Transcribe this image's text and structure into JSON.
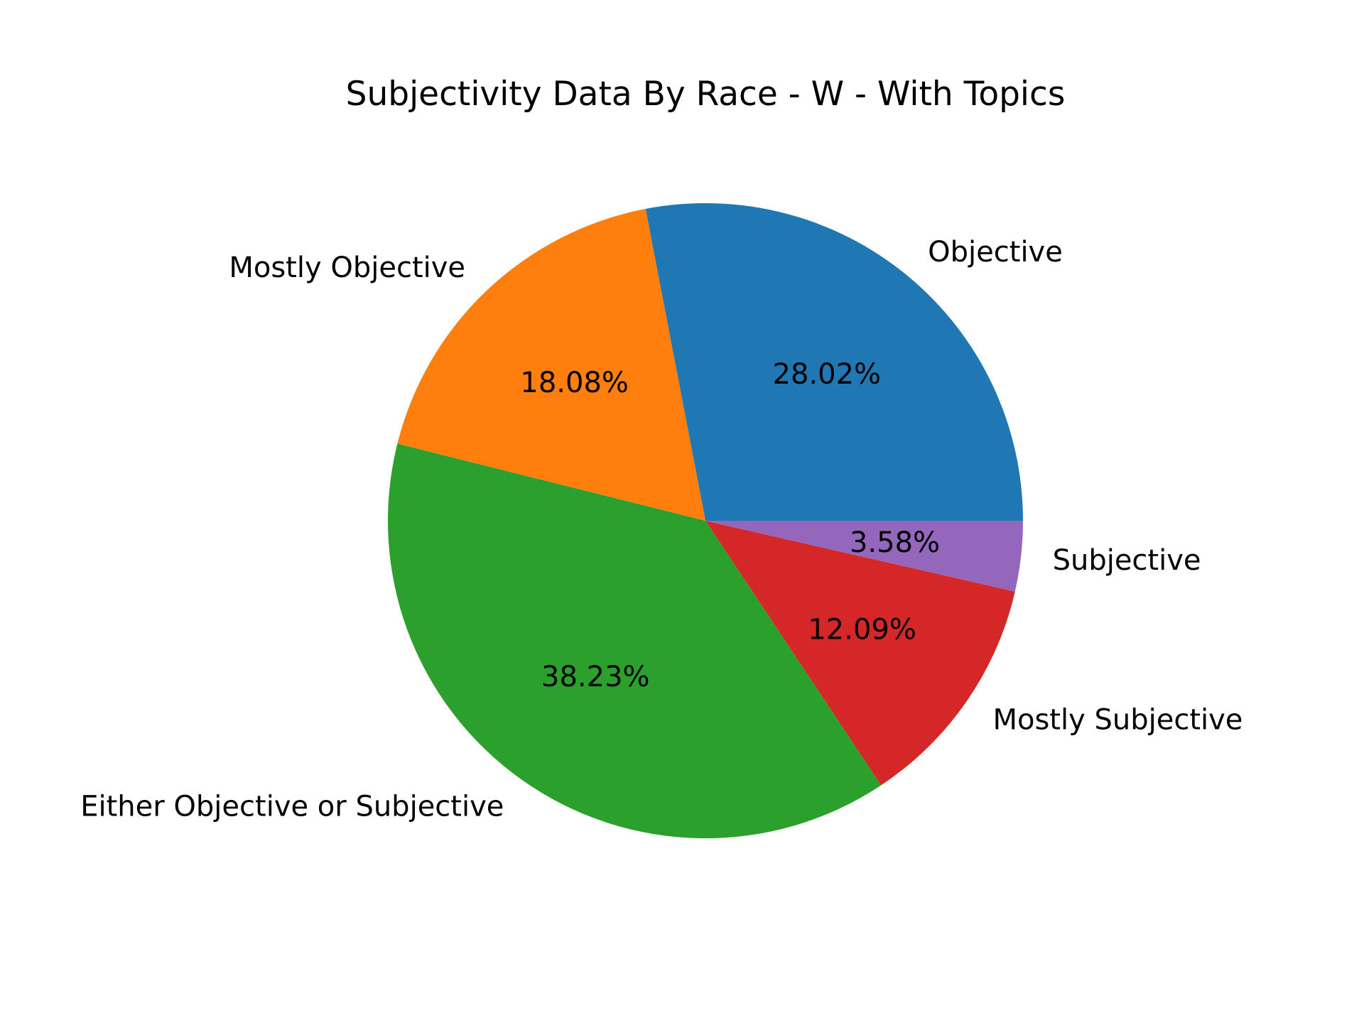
{
  "chart_data": {
    "type": "pie",
    "title": "Subjectivity Data By Race - W - With Topics",
    "slices": [
      {
        "label": "Objective",
        "value": 28.02,
        "pct_text": "28.02%",
        "color": "#1f77b4"
      },
      {
        "label": "Mostly Objective",
        "value": 18.08,
        "pct_text": "18.08%",
        "color": "#ff7f0e"
      },
      {
        "label": "Either Objective or Subjective",
        "value": 38.23,
        "pct_text": "38.23%",
        "color": "#2ca02c"
      },
      {
        "label": "Mostly Subjective",
        "value": 12.09,
        "pct_text": "12.09%",
        "color": "#d62728"
      },
      {
        "label": "Subjective",
        "value": 3.58,
        "pct_text": "3.58%",
        "color": "#9467bd"
      }
    ],
    "start_angle_deg": 0,
    "direction": "counterclockwise"
  }
}
